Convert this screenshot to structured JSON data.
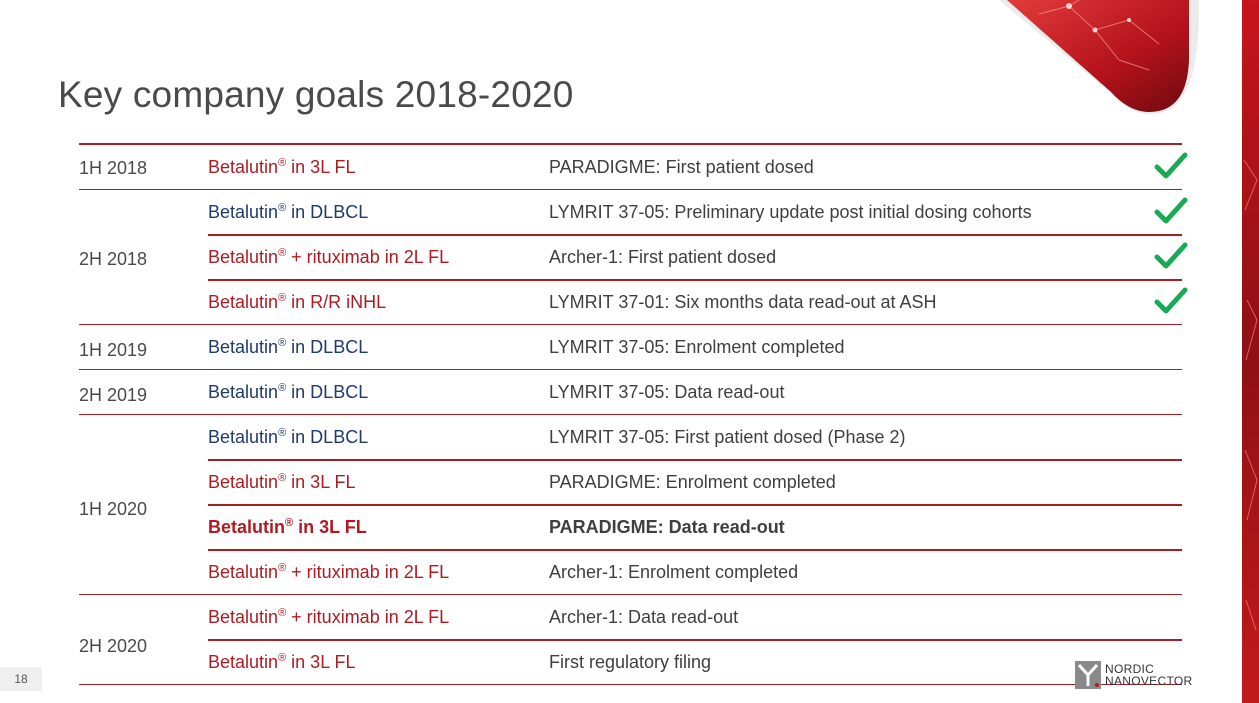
{
  "slide": {
    "title": "Key company goals 2018-2020",
    "page_number": "18",
    "logo_line1": "NORDIC",
    "logo_line2": "NANOVECTOR"
  },
  "colors": {
    "accent_red": "#b01b22",
    "accent_blue": "#1f3a6e",
    "check_green": "#1aaa55"
  },
  "periods": [
    {
      "label": "1H 2018"
    },
    {
      "label": "2H 2018"
    },
    {
      "label": "1H 2019"
    },
    {
      "label": "2H 2019"
    },
    {
      "label": "1H 2020"
    },
    {
      "label": "2H 2020"
    }
  ],
  "rows": [
    {
      "product": "Betalutin",
      "reg": "®",
      "product_rest": " in 3L FL",
      "milestone": "PARADIGME: First patient dosed",
      "completed": true
    },
    {
      "product": "Betalutin",
      "reg": "®",
      "product_rest": " in DLBCL",
      "milestone": "LYMRIT 37-05: Preliminary update post initial dosing cohorts",
      "completed": true
    },
    {
      "product": "Betalutin",
      "reg": "®",
      "product_rest": " + rituximab in 2L FL",
      "milestone": "Archer-1: First patient dosed",
      "completed": true
    },
    {
      "product": "Betalutin",
      "reg": "®",
      "product_rest": " in R/R iNHL",
      "milestone": "LYMRIT 37-01: Six months data read-out at ASH",
      "completed": true
    },
    {
      "product": "Betalutin",
      "reg": "®",
      "product_rest": " in DLBCL",
      "milestone": "LYMRIT 37-05: Enrolment completed",
      "completed": false
    },
    {
      "product": "Betalutin",
      "reg": "®",
      "product_rest": " in DLBCL",
      "milestone": "LYMRIT 37-05: Data read-out",
      "completed": false
    },
    {
      "product": "Betalutin",
      "reg": "®",
      "product_rest": " in DLBCL",
      "milestone": "LYMRIT 37-05: First patient dosed (Phase 2)",
      "completed": false
    },
    {
      "product": "Betalutin",
      "reg": "®",
      "product_rest": " in 3L FL",
      "milestone": "PARADIGME: Enrolment completed",
      "completed": false
    },
    {
      "product": "Betalutin",
      "reg": "®",
      "product_rest": " in 3L FL",
      "milestone": "PARADIGME: Data read-out",
      "completed": false
    },
    {
      "product": "Betalutin",
      "reg": "®",
      "product_rest": " + rituximab in 2L FL",
      "milestone": "Archer-1: Enrolment completed",
      "completed": false
    },
    {
      "product": "Betalutin",
      "reg": "®",
      "product_rest": " + rituximab in 2L FL",
      "milestone": "Archer-1: Data read-out",
      "completed": false
    },
    {
      "product": "Betalutin",
      "reg": "®",
      "product_rest": " in 3L FL",
      "milestone": "First regulatory filing",
      "completed": false
    }
  ]
}
